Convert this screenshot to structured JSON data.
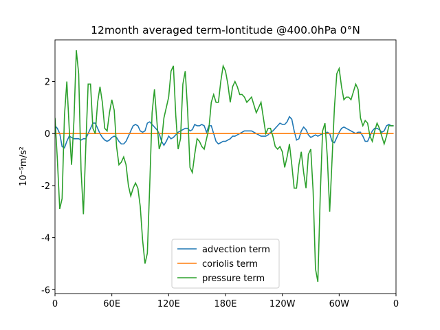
{
  "chart_data": {
    "type": "line",
    "title": "12month averaged term-lontitude @400.0hPa 0°N",
    "ylabel": "10⁻⁵m/s²",
    "xlim": [
      0,
      360
    ],
    "ylim": [
      -6.15,
      3.6
    ],
    "xticks": [
      0,
      {
        "value": 60,
        "label": "60E"
      },
      {
        "value": 120,
        "label": "120E"
      },
      {
        "value": 180,
        "label": "180E"
      },
      {
        "value": 240,
        "label": "120W"
      },
      {
        "value": 300,
        "label": "60W"
      },
      {
        "value": 360,
        "label": "0"
      }
    ],
    "yticks": [
      -6,
      -4,
      -2,
      0,
      2
    ],
    "legend": "lower center",
    "x": [
      0,
      2.5,
      5,
      7.5,
      10,
      12.5,
      15,
      17.5,
      20,
      22.5,
      25,
      27.5,
      30,
      32.5,
      35,
      37.5,
      40,
      42.5,
      45,
      47.5,
      50,
      52.5,
      55,
      57.5,
      60,
      62.5,
      65,
      67.5,
      70,
      72.5,
      75,
      77.5,
      80,
      82.5,
      85,
      87.5,
      90,
      92.5,
      95,
      97.5,
      100,
      102.5,
      105,
      107.5,
      110,
      112.5,
      115,
      117.5,
      120,
      122.5,
      125,
      127.5,
      130,
      132.5,
      135,
      137.5,
      140,
      142.5,
      145,
      147.5,
      150,
      152.5,
      155,
      157.5,
      160,
      162.5,
      165,
      167.5,
      170,
      172.5,
      175,
      177.5,
      180,
      182.5,
      185,
      187.5,
      190,
      192.5,
      195,
      197.5,
      200,
      202.5,
      205,
      207.5,
      210,
      212.5,
      215,
      217.5,
      220,
      222.5,
      225,
      227.5,
      230,
      232.5,
      235,
      237.5,
      240,
      242.5,
      245,
      247.5,
      250,
      252.5,
      255,
      257.5,
      260,
      262.5,
      265,
      267.5,
      270,
      272.5,
      275,
      277.5,
      280,
      282.5,
      285,
      287.5,
      290,
      292.5,
      295,
      297.5,
      300,
      302.5,
      305,
      307.5,
      310,
      312.5,
      315,
      317.5,
      320,
      322.5,
      325,
      327.5,
      330,
      332.5,
      335,
      337.5,
      340,
      342.5,
      345,
      347.5,
      350,
      352.5,
      355,
      357.5
    ],
    "series": [
      {
        "name": "advection term",
        "color": "#1f77b4",
        "values": [
          0.3,
          0.2,
          0,
          -0.5,
          -0.55,
          -0.3,
          -0.1,
          -0.15,
          -0.2,
          -0.2,
          -0.2,
          -0.25,
          -0.2,
          -0.2,
          0,
          0.2,
          0.4,
          0.4,
          0.2,
          0,
          -0.15,
          -0.25,
          -0.3,
          -0.25,
          -0.15,
          -0.1,
          -0.15,
          -0.3,
          -0.4,
          -0.4,
          -0.3,
          -0.1,
          0.1,
          0.3,
          0.35,
          0.3,
          0.1,
          0.05,
          0.1,
          0.4,
          0.45,
          0.35,
          0.25,
          0.15,
          0,
          -0.3,
          -0.45,
          -0.3,
          -0.1,
          -0.2,
          -0.15,
          -0.05,
          0.05,
          0.1,
          0.15,
          0.2,
          0.2,
          0.1,
          0.15,
          0.35,
          0.3,
          0.3,
          0.35,
          0.3,
          0.05,
          0.3,
          0.3,
          0,
          -0.3,
          -0.4,
          -0.35,
          -0.3,
          -0.3,
          -0.25,
          -0.2,
          -0.1,
          -0.1,
          -0.05,
          0,
          0.05,
          0.1,
          0.1,
          0.1,
          0.1,
          0.05,
          0,
          -0.05,
          -0.1,
          -0.1,
          -0.1,
          -0.05,
          0.05,
          0.1,
          0.2,
          0.3,
          0.4,
          0.35,
          0.35,
          0.45,
          0.65,
          0.55,
          0.1,
          -0.25,
          -0.2,
          0.1,
          0.25,
          0.15,
          -0.05,
          -0.15,
          -0.1,
          -0.05,
          -0.1,
          -0.05,
          0,
          0,
          0.05,
          0,
          -0.3,
          -0.35,
          -0.15,
          0.05,
          0.2,
          0.25,
          0.2,
          0.15,
          0.1,
          0.05,
          0,
          0.05,
          0.05,
          -0.1,
          -0.3,
          -0.3,
          -0.1,
          0.1,
          0.2,
          0.2,
          0.15,
          0.05,
          0.1,
          0.3,
          0.35,
          0.3,
          0.3
        ]
      },
      {
        "name": "coriolis term",
        "color": "#ff7f0e",
        "values": [
          0,
          0,
          0,
          0,
          0,
          0,
          0,
          0,
          0,
          0,
          0,
          0,
          0,
          0,
          0,
          0,
          0,
          0,
          0,
          0,
          0,
          0,
          0,
          0,
          0,
          0,
          0,
          0,
          0,
          0,
          0,
          0,
          0,
          0,
          0,
          0,
          0,
          0,
          0,
          0,
          0,
          0,
          0,
          0,
          0,
          0,
          0,
          0,
          0,
          0,
          0,
          0,
          0,
          0,
          0,
          0,
          0,
          0,
          0,
          0,
          0,
          0,
          0,
          0,
          0,
          0,
          0,
          0,
          0,
          0,
          0,
          0,
          0,
          0,
          0,
          0,
          0,
          0,
          0,
          0,
          0,
          0,
          0,
          0,
          0,
          0,
          0,
          0,
          0,
          0,
          0,
          0,
          0,
          0,
          0,
          0,
          0,
          0,
          0,
          0,
          0,
          0,
          0,
          0,
          0,
          0,
          0,
          0,
          0,
          0,
          0,
          0,
          0,
          0,
          0,
          0,
          0,
          0,
          0,
          0,
          0,
          0,
          0,
          0,
          0,
          0,
          0,
          0,
          0,
          0,
          0,
          0,
          0,
          0,
          0,
          0,
          0,
          0,
          0,
          0,
          0,
          0,
          0,
          0
        ]
      },
      {
        "name": "pressure term",
        "color": "#2ca02c",
        "values": [
          0.6,
          -1,
          -2.9,
          -2.5,
          0.7,
          2.0,
          0.2,
          -1.2,
          0.5,
          3.2,
          2.3,
          -1.4,
          -3.1,
          -0.5,
          1.9,
          1.9,
          0.2,
          0,
          1.2,
          1.8,
          1.2,
          0.2,
          0.1,
          0.8,
          1.3,
          0.9,
          -0.5,
          -1.2,
          -1.1,
          -0.9,
          -1.2,
          -2.0,
          -2.4,
          -2.1,
          -1.9,
          -2.1,
          -2.8,
          -4.1,
          -5.0,
          -4.6,
          -2.0,
          0.8,
          1.7,
          0.5,
          -0.6,
          -0.3,
          0.6,
          1.0,
          1.4,
          2.4,
          2.6,
          0.7,
          -0.6,
          -0.2,
          1.9,
          2.4,
          0.9,
          -1.3,
          -1.5,
          -0.8,
          -0.2,
          -0.3,
          -0.5,
          -0.6,
          -0.2,
          0.2,
          1.2,
          1.5,
          1.2,
          1.2,
          2.0,
          2.6,
          2.4,
          1.9,
          1.2,
          1.8,
          2.0,
          1.8,
          1.5,
          1.5,
          1.4,
          1.2,
          1.3,
          1.4,
          1.1,
          0.8,
          1.0,
          1.2,
          0.6,
          0.0,
          0.2,
          0.2,
          -0.1,
          -0.5,
          -0.6,
          -0.5,
          -0.7,
          -1.3,
          -0.9,
          -0.4,
          -1.2,
          -2.1,
          -2.1,
          -1.2,
          -0.7,
          -1.5,
          -2.1,
          -0.8,
          -0.6,
          -2.2,
          -5.2,
          -5.7,
          -2.4,
          0.1,
          0.4,
          -0.9,
          -3.0,
          -1.0,
          1.0,
          2.3,
          2.5,
          1.8,
          1.3,
          1.4,
          1.4,
          1.3,
          1.6,
          1.9,
          1.7,
          0.6,
          0.3,
          0.5,
          0.4,
          -0.1,
          -0.3,
          0.1,
          0.4,
          0.2,
          -0.1,
          -0.4,
          -0.1,
          0.3,
          0.3,
          0.3
        ]
      }
    ]
  }
}
